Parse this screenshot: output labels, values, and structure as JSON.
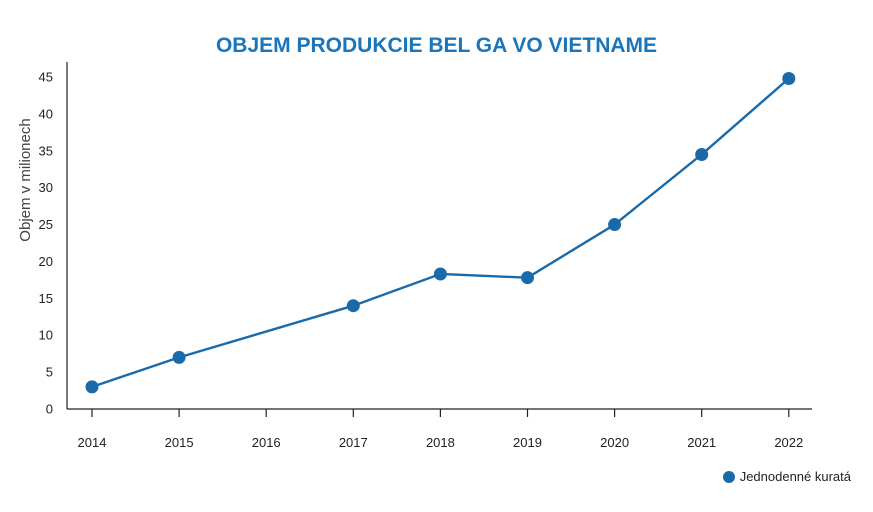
{
  "chart_data": {
    "type": "line",
    "title": "OBJEM PRODUKCIE BEL GA VO VIETNAME",
    "xlabel": "",
    "ylabel": "Objem v milionech",
    "x_ticks": [
      "2014",
      "2015",
      "2016",
      "2017",
      "2018",
      "2019",
      "2020",
      "2021",
      "2022"
    ],
    "y_ticks": [
      0,
      5,
      10,
      15,
      20,
      25,
      30,
      35,
      40,
      45
    ],
    "ylim": [
      0,
      45
    ],
    "series": [
      {
        "name": "Jednodenné kuratá",
        "points": [
          {
            "x": "2014",
            "y": 3.0
          },
          {
            "x": "2015",
            "y": 7.0
          },
          {
            "x": "2017",
            "y": 14.0
          },
          {
            "x": "2018",
            "y": 18.3
          },
          {
            "x": "2019",
            "y": 17.8
          },
          {
            "x": "2020",
            "y": 25.0
          },
          {
            "x": "2021",
            "y": 34.5
          },
          {
            "x": "2022",
            "y": 44.8
          }
        ]
      }
    ],
    "grid": false,
    "legend_position": "bottom-right",
    "colors": {
      "line": "#1a6aaa",
      "title": "#1b75bb",
      "axis": "#222222"
    }
  }
}
